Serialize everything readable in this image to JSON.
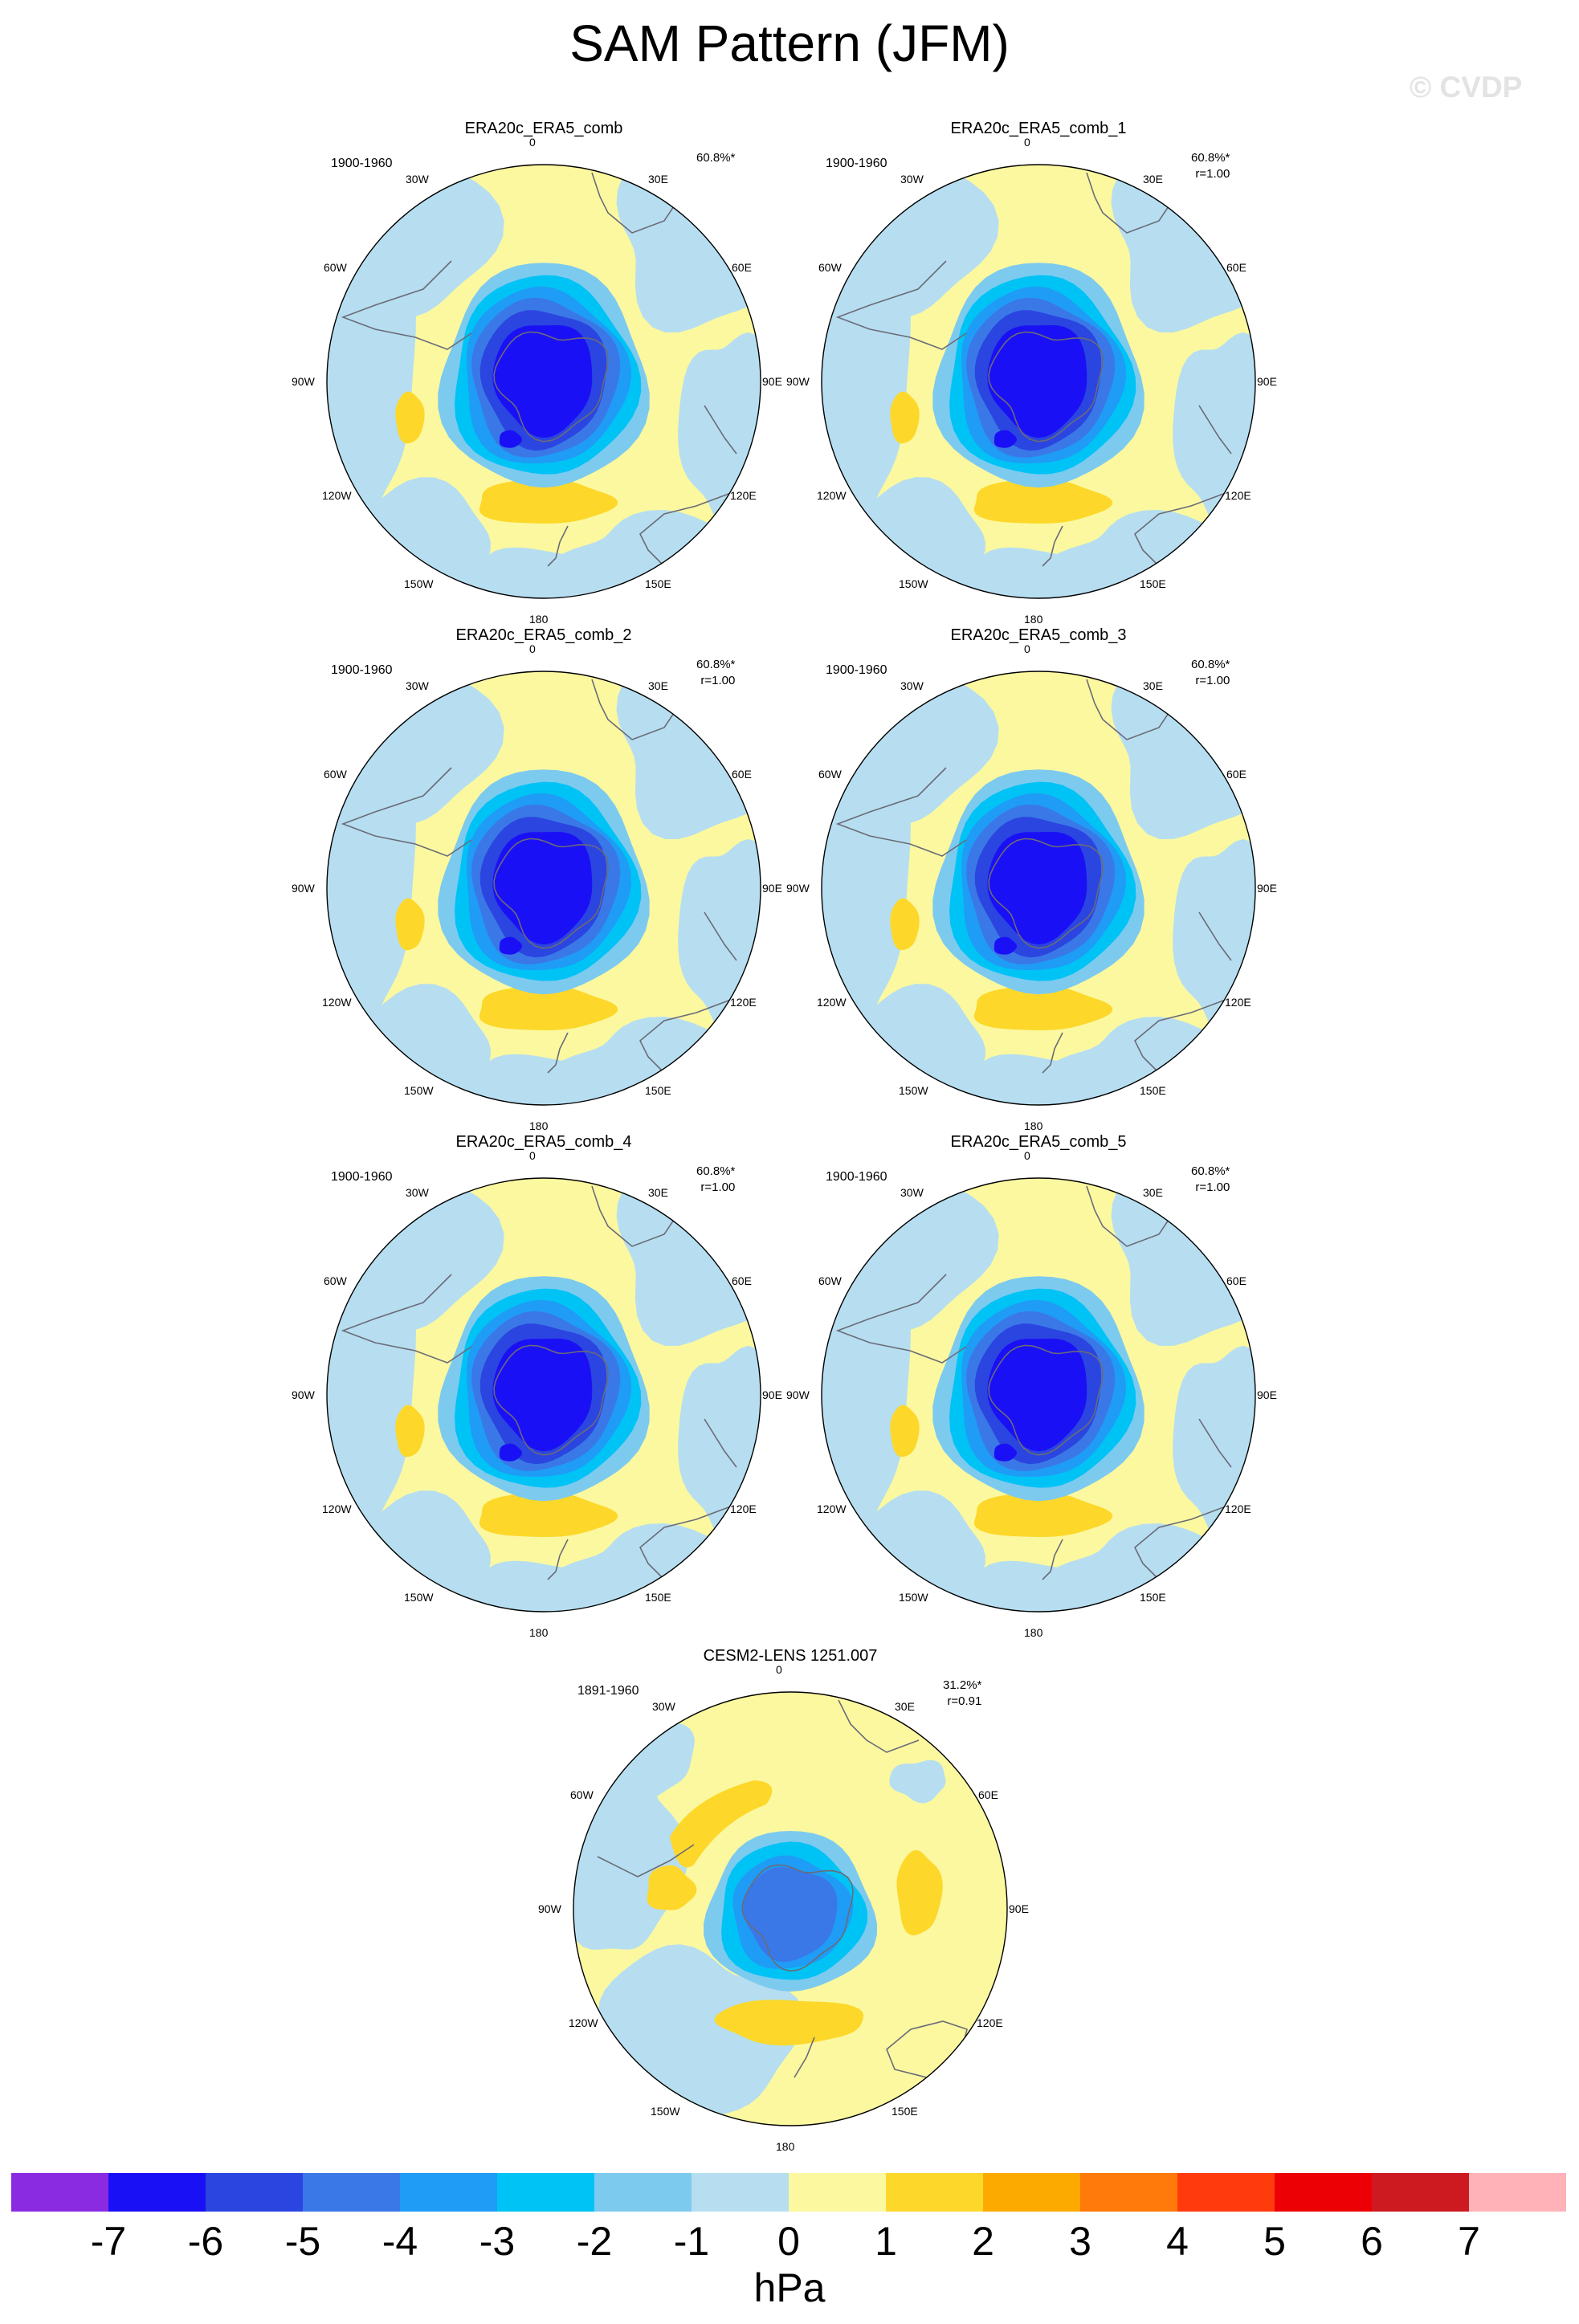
{
  "title": "SAM Pattern (JFM)",
  "watermark": "© CVDP",
  "longitude_labels": [
    "0",
    "30E",
    "60E",
    "90E",
    "120E",
    "150E",
    "180",
    "150W",
    "120W",
    "90W",
    "60W",
    "30W"
  ],
  "panels": [
    {
      "name": "ERA20c_ERA5_comb",
      "period": "1900-1960",
      "pct": "60.8%*",
      "corr": "",
      "center_min": -6,
      "pattern": "obs"
    },
    {
      "name": "ERA20c_ERA5_comb_1",
      "period": "1900-1960",
      "pct": "60.8%*",
      "corr": "r=1.00",
      "center_min": -6,
      "pattern": "obs"
    },
    {
      "name": "ERA20c_ERA5_comb_2",
      "period": "1900-1960",
      "pct": "60.8%*",
      "corr": "r=1.00",
      "center_min": -6,
      "pattern": "obs"
    },
    {
      "name": "ERA20c_ERA5_comb_3",
      "period": "1900-1960",
      "pct": "60.8%*",
      "corr": "r=1.00",
      "center_min": -6,
      "pattern": "obs"
    },
    {
      "name": "ERA20c_ERA5_comb_4",
      "period": "1900-1960",
      "pct": "60.8%*",
      "corr": "r=1.00",
      "center_min": -6,
      "pattern": "obs"
    },
    {
      "name": "ERA20c_ERA5_comb_5",
      "period": "1900-1960",
      "pct": "60.8%*",
      "corr": "r=1.00",
      "center_min": -6,
      "pattern": "obs"
    },
    {
      "name": "CESM2-LENS 1251.007",
      "period": "1891-1960",
      "pct": "31.2%*",
      "corr": "r=0.91",
      "center_min": -4,
      "pattern": "model"
    }
  ],
  "colorbar": {
    "units": "hPa",
    "labels": [
      "-7",
      "-6",
      "-5",
      "-4",
      "-3",
      "-2",
      "-1",
      "0",
      "1",
      "2",
      "3",
      "4",
      "5",
      "6",
      "7"
    ],
    "colors": [
      "#8a2be2",
      "#1a10f5",
      "#2b45e0",
      "#3a78e8",
      "#1f9cf5",
      "#00c3f5",
      "#7dcaef",
      "#b6def0",
      "#fbf8a0",
      "#fdd82a",
      "#fdaa00",
      "#ff7a0a",
      "#ff3a0c",
      "#ec0006",
      "#cc1a20",
      "#ffb3b8"
    ],
    "level_colors": {
      "-6": "#1a10f5",
      "-5": "#2b45e0",
      "-4": "#3a78e8",
      "-3": "#1f9cf5",
      "-2": "#00c3f5",
      "-1": "#7dcaef",
      "0": "#b6def0",
      "1": "#fbf8a0",
      "2": "#fdd82a"
    }
  }
}
